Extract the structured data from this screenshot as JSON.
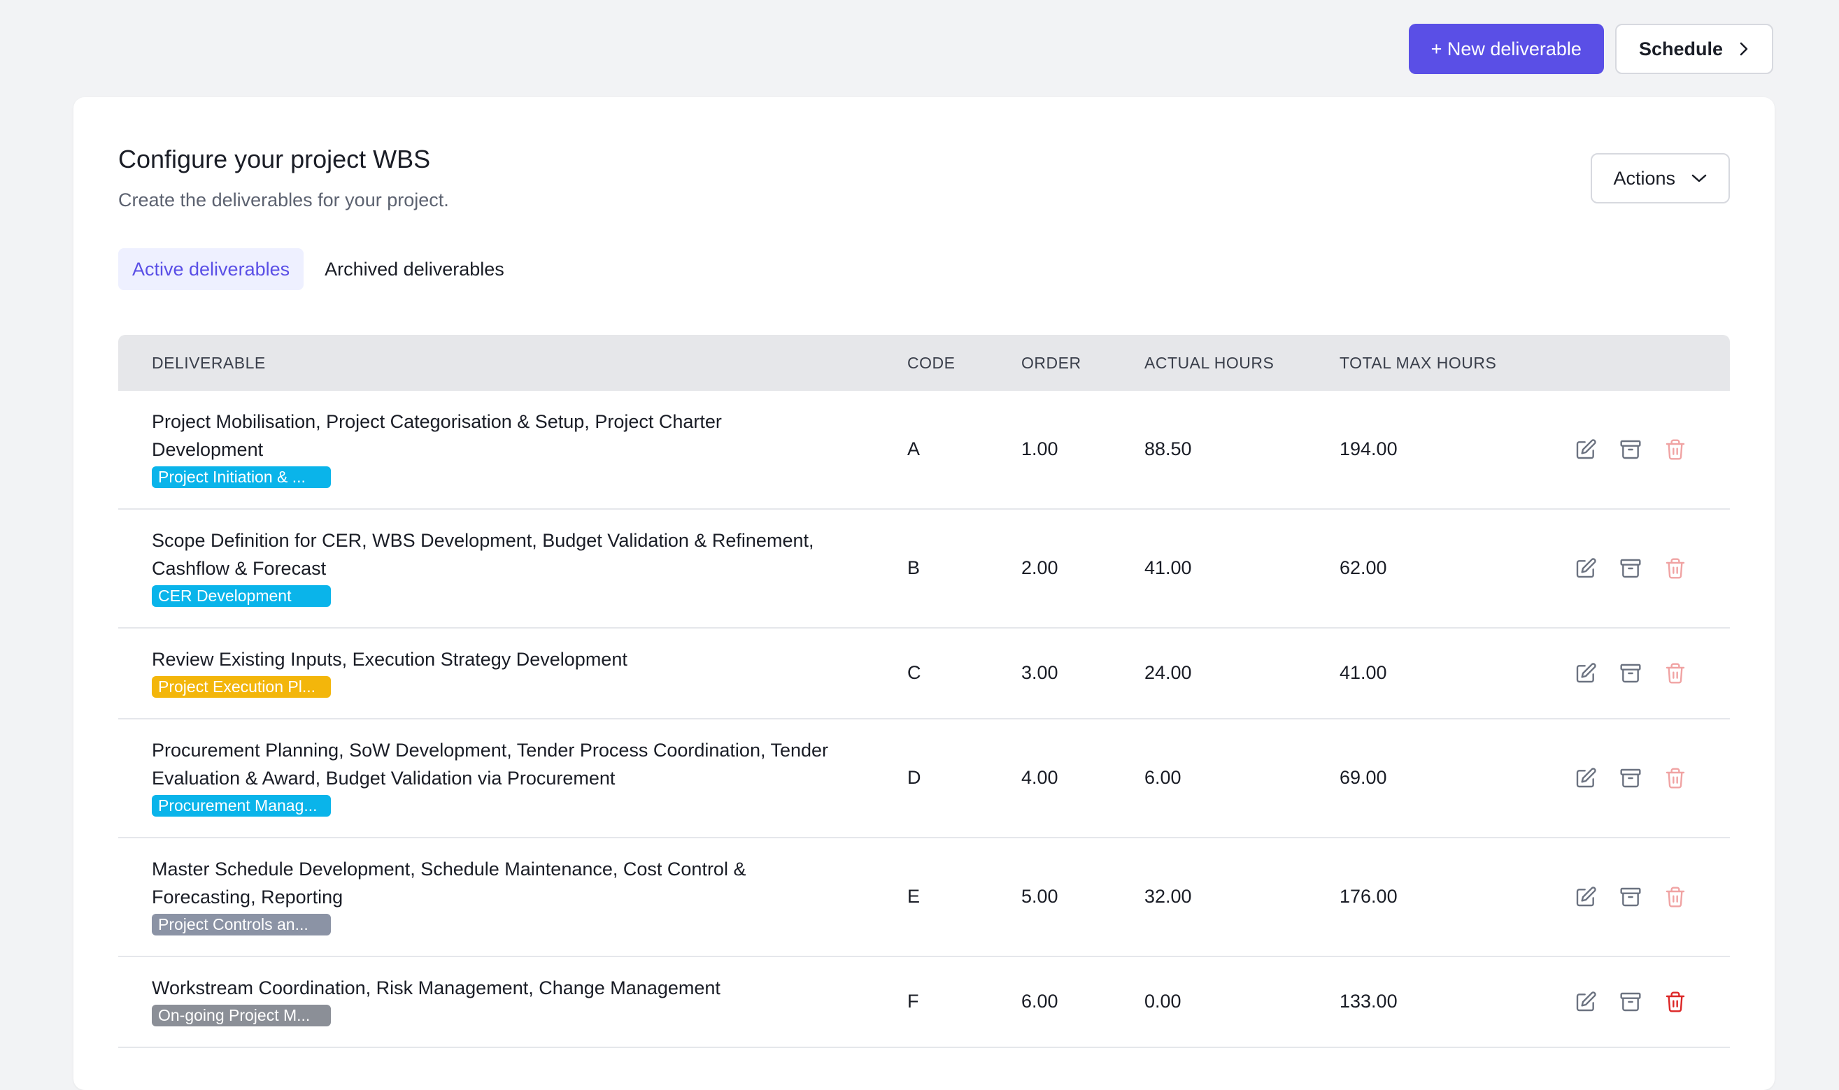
{
  "header": {
    "new_button": "+ New deliverable",
    "schedule_button": "Schedule"
  },
  "card": {
    "title": "Configure your project WBS",
    "subtitle": "Create the deliverables for your project.",
    "actions_button": "Actions"
  },
  "tabs": [
    {
      "label": "Active deliverables",
      "active": true
    },
    {
      "label": "Archived deliverables",
      "active": false
    }
  ],
  "table": {
    "columns": [
      "DELIVERABLE",
      "CODE",
      "ORDER",
      "ACTUAL HOURS",
      "TOTAL MAX HOURS"
    ],
    "rows": [
      {
        "name": "Project Mobilisation, Project Categorisation & Setup, Project Charter Development",
        "tag": "Project Initiation & ...",
        "tag_color": "#0ab4ea",
        "code": "A",
        "order": "1.00",
        "actual": "88.50",
        "max": "194.00"
      },
      {
        "name": "Scope Definition for CER, WBS Development, Budget Validation & Refinement, Cashflow & Forecast",
        "tag": "CER Development",
        "tag_color": "#0ab4ea",
        "code": "B",
        "order": "2.00",
        "actual": "41.00",
        "max": "62.00"
      },
      {
        "name": "Review Existing Inputs, Execution Strategy Development",
        "tag": "Project Execution Pl...",
        "tag_color": "#f3b60b",
        "code": "C",
        "order": "3.00",
        "actual": "24.00",
        "max": "41.00"
      },
      {
        "name": "Procurement Planning, SoW Development, Tender Process Coordination, Tender Evaluation & Award, Budget Validation via Procurement",
        "tag": "Procurement Manag...",
        "tag_color": "#0ab4ea",
        "code": "D",
        "order": "4.00",
        "actual": "6.00",
        "max": "69.00"
      },
      {
        "name": "Master Schedule Development, Schedule Maintenance, Cost Control & Forecasting, Reporting",
        "tag": "Project Controls an...",
        "tag_color": "#8b93a5",
        "code": "E",
        "order": "5.00",
        "actual": "32.00",
        "max": "176.00"
      },
      {
        "name": "Workstream Coordination, Risk Management, Change Management",
        "tag": "On-going Project M...",
        "tag_color": "#8b8f97",
        "code": "F",
        "order": "6.00",
        "actual": "0.00",
        "max": "133.00"
      }
    ]
  },
  "colors": {
    "primary": "#5a4fe6",
    "delete_muted": "#f0a3a3",
    "delete_active": "#dc2626"
  },
  "icons": [
    "plus-icon",
    "chevron-right-icon",
    "chevron-down-icon",
    "edit-icon",
    "archive-icon",
    "trash-icon"
  ]
}
